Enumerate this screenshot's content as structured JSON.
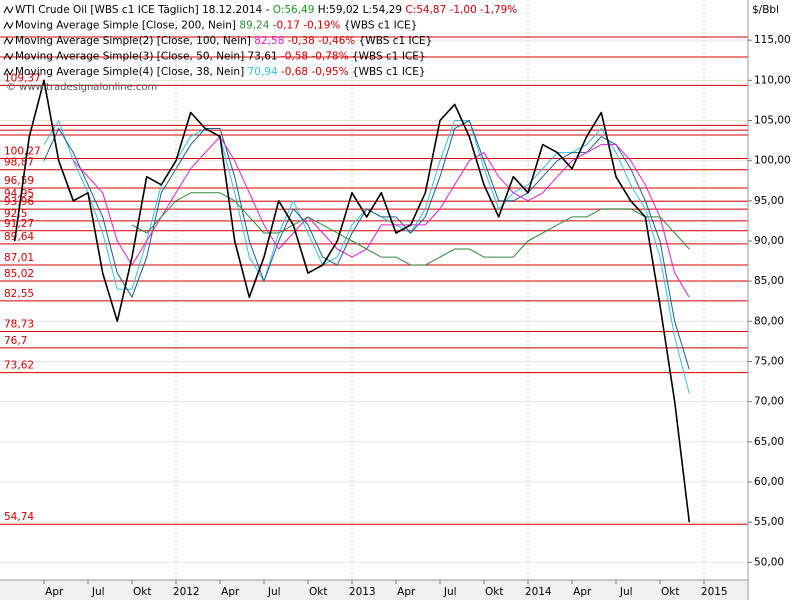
{
  "chart_data": {
    "type": "line",
    "header": {
      "instrument": "WTI Crude Oil [WBS c1 ICE  Täglich] 18.12.2014 -",
      "open": "O:56,49",
      "high_low": "H:59,02 L:54,29",
      "close_change": "C:54,87 -1,00 -1,79%"
    },
    "watermark": "© www.tradesignalonline.com",
    "y_unit": "$/Bbl",
    "x": [
      "2011-02",
      "2011-03",
      "2011-04",
      "2011-05",
      "2011-06",
      "2011-07",
      "2011-08",
      "2011-09",
      "2011-10",
      "2011-11",
      "2011-12",
      "2012-01",
      "2012-02",
      "2012-03",
      "2012-04",
      "2012-05",
      "2012-06",
      "2012-07",
      "2012-08",
      "2012-09",
      "2012-10",
      "2012-11",
      "2012-12",
      "2013-01",
      "2013-02",
      "2013-03",
      "2013-04",
      "2013-05",
      "2013-06",
      "2013-07",
      "2013-08",
      "2013-09",
      "2013-10",
      "2013-11",
      "2013-12",
      "2014-01",
      "2014-02",
      "2014-03",
      "2014-04",
      "2014-05",
      "2014-06",
      "2014-07",
      "2014-08",
      "2014-09",
      "2014-10",
      "2014-11",
      "2014-12"
    ],
    "series": [
      {
        "name": "WTI Crude Oil",
        "color": "#000000",
        "width": 1.6,
        "values": [
          90,
          103,
          110,
          100,
          95,
          96,
          86,
          80,
          88,
          98,
          97,
          100,
          106,
          104,
          103,
          90,
          83,
          88,
          95,
          92,
          86,
          87,
          90,
          96,
          93,
          96,
          91,
          92,
          96,
          105,
          107,
          103,
          97,
          93,
          98,
          96,
          102,
          101,
          99,
          103,
          106,
          98,
          95,
          93,
          82,
          70,
          55
        ]
      },
      {
        "name": "Moving Average Simple [Close, 200, Nein]",
        "last_value": "89,24",
        "change": "-0,17 -0,19%",
        "source": "{WBS c1 ICE}",
        "color": "#2e8b3a",
        "value_color": "#2e8b3a",
        "width": 1,
        "values": [
          null,
          null,
          null,
          null,
          null,
          null,
          null,
          null,
          92,
          91,
          93,
          95,
          96,
          96,
          96,
          95,
          93,
          91,
          91,
          92,
          93,
          92,
          91,
          90,
          89,
          88,
          88,
          87,
          87,
          88,
          89,
          89,
          88,
          88,
          88,
          90,
          91,
          92,
          93,
          93,
          94,
          94,
          94,
          93,
          93,
          91,
          89
        ]
      },
      {
        "name": "Moving Average Simple(2) [Close, 100, Nein]",
        "last_value": "82,58",
        "change": "-0,38 -0,46%",
        "source": "{WBS c1 ICE}",
        "color": "#e020d0",
        "value_color": "#e020d0",
        "width": 1,
        "values": [
          null,
          null,
          null,
          null,
          100,
          98,
          96,
          90,
          87,
          90,
          93,
          96,
          99,
          101,
          103,
          100,
          96,
          92,
          89,
          91,
          93,
          91,
          89,
          88,
          89,
          92,
          92,
          92,
          92,
          94,
          97,
          100,
          101,
          98,
          96,
          95,
          96,
          98,
          100,
          101,
          102,
          102,
          100,
          97,
          93,
          86,
          83
        ]
      },
      {
        "name": "Moving Average Simple(3) [Close, 50, Nein]",
        "last_value": "73,61",
        "change": "-0,58 -0,78%",
        "source": "{WBS c1 ICE}",
        "color": "#1f5f8b",
        "value_color": "#000000",
        "width": 1,
        "values": [
          null,
          null,
          100,
          104,
          101,
          97,
          93,
          86,
          83,
          88,
          96,
          99,
          102,
          104,
          104,
          98,
          90,
          85,
          90,
          94,
          92,
          88,
          87,
          91,
          94,
          93,
          93,
          91,
          93,
          98,
          104,
          105,
          100,
          95,
          95,
          96,
          98,
          100,
          101,
          101,
          103,
          102,
          99,
          95,
          90,
          80,
          74
        ]
      },
      {
        "name": "Moving Average Simple(4) [Close, 38, Nein]",
        "last_value": "70,94",
        "change": "-0,68 -0,95%",
        "source": "{WBS c1 ICE}",
        "color": "#35bfe8",
        "value_color": "#35bfe8",
        "width": 1,
        "values": [
          null,
          null,
          102,
          105,
          100,
          96,
          91,
          84,
          84,
          90,
          97,
          100,
          103,
          104,
          103,
          96,
          88,
          85,
          91,
          95,
          91,
          87,
          88,
          92,
          94,
          93,
          92,
          91,
          94,
          100,
          105,
          105,
          99,
          94,
          96,
          97,
          99,
          101,
          101,
          102,
          104,
          101,
          97,
          94,
          88,
          78,
          71
        ]
      }
    ],
    "horizontal_lines": [
      {
        "value": 115.4,
        "label": null
      },
      {
        "value": 112.9,
        "label": null
      },
      {
        "value": 109.37,
        "label": "109,37"
      },
      {
        "value": 104.4,
        "label": null
      },
      {
        "value": 103.8,
        "label": null
      },
      {
        "value": 103.2,
        "label": null
      },
      {
        "value": 100.27,
        "label": "100,27"
      },
      {
        "value": 98.87,
        "label": "98,87"
      },
      {
        "value": 96.59,
        "label": "96,59"
      },
      {
        "value": 94.95,
        "label": "94,95"
      },
      {
        "value": 93.96,
        "label": "93,96"
      },
      {
        "value": 92.5,
        "label": "92,5"
      },
      {
        "value": 91.27,
        "label": "91,27"
      },
      {
        "value": 89.64,
        "label": "89,64"
      },
      {
        "value": 87.01,
        "label": "87,01"
      },
      {
        "value": 85.02,
        "label": "85,02"
      },
      {
        "value": 82.55,
        "label": "82,55"
      },
      {
        "value": 78.73,
        "label": "78,73"
      },
      {
        "value": 76.7,
        "label": "76,7"
      },
      {
        "value": 73.62,
        "label": "73,62"
      },
      {
        "value": 54.74,
        "label": "54,74"
      }
    ],
    "hline_color": "#d40000",
    "ylim": [
      47.8,
      120
    ],
    "yticks": [
      {
        "value": 50,
        "label": "50,00"
      },
      {
        "value": 55,
        "label": "55,00"
      },
      {
        "value": 60,
        "label": "60,00"
      },
      {
        "value": 65,
        "label": "65,00"
      },
      {
        "value": 70,
        "label": "70,00"
      },
      {
        "value": 75,
        "label": "75,00"
      },
      {
        "value": 80,
        "label": "80,00"
      },
      {
        "value": 85,
        "label": "85,00"
      },
      {
        "value": 90,
        "label": "90,00"
      },
      {
        "value": 95,
        "label": "95,00"
      },
      {
        "value": 100,
        "label": "100,00"
      },
      {
        "value": 105,
        "label": "105,00"
      },
      {
        "value": 110,
        "label": "110,00"
      },
      {
        "value": 115,
        "label": "115,00"
      }
    ],
    "xlim": [
      "2011-01",
      "2015-04"
    ],
    "xticks": [
      {
        "value": "2011-04",
        "label": "Apr"
      },
      {
        "value": "2011-07",
        "label": "Jul"
      },
      {
        "value": "2011-10",
        "label": "Okt"
      },
      {
        "value": "2012-01",
        "label": "2012"
      },
      {
        "value": "2012-04",
        "label": "Apr"
      },
      {
        "value": "2012-07",
        "label": "Jul"
      },
      {
        "value": "2012-10",
        "label": "Okt"
      },
      {
        "value": "2013-01",
        "label": "2013"
      },
      {
        "value": "2013-04",
        "label": "Apr"
      },
      {
        "value": "2013-07",
        "label": "Jul"
      },
      {
        "value": "2013-10",
        "label": "Okt"
      },
      {
        "value": "2014-01",
        "label": "2014"
      },
      {
        "value": "2014-04",
        "label": "Apr"
      },
      {
        "value": "2014-07",
        "label": "Jul"
      },
      {
        "value": "2014-10",
        "label": "Okt"
      },
      {
        "value": "2015-01",
        "label": "2015"
      }
    ],
    "grid": true
  }
}
